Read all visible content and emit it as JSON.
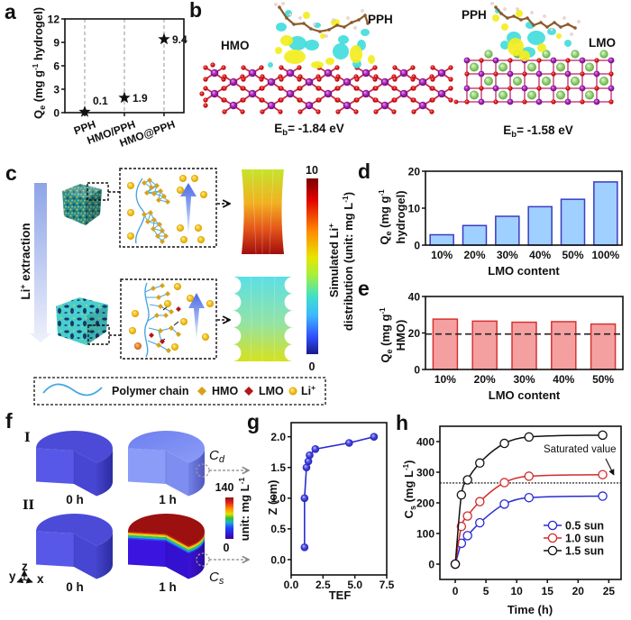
{
  "figure": {
    "panel_labels": {
      "a": "a",
      "b": "b",
      "c": "c",
      "d": "d",
      "e": "e",
      "f": "f",
      "g": "g",
      "h": "h"
    }
  },
  "panel_b": {
    "left": {
      "surface_label": "HMO",
      "molecule_label": "PPH",
      "binding_energy": {
        "symbol": "E",
        "sub": "b",
        "value": "= -1.84 eV"
      }
    },
    "right": {
      "surface_label": "LMO",
      "molecule_label": "PPH",
      "binding_energy": {
        "symbol": "E",
        "sub": "b",
        "value": "= -1.58 eV"
      }
    },
    "atom_colors": {
      "Mn": "#9a1fa8",
      "O": "#e01414",
      "Li": "#8fd070",
      "C": "#8b5a2b",
      "H": "#f2d6d6",
      "charge_accumulation": "#f2ee1e",
      "charge_depletion": "#3fdcdc"
    }
  },
  "panel_c": {
    "process_label": {
      "main": "Li",
      "sup": "+",
      "rest": " extraction"
    },
    "colorbar": {
      "max": "10",
      "min": "0",
      "title_line1": {
        "main": "Simulated Li",
        "sup": "+"
      },
      "title_line2": {
        "pre": "distribution (unit: mg L",
        "sup": "-1",
        "post": ")"
      }
    },
    "legend": [
      {
        "label": "Polymer chain",
        "symbol": "wave",
        "color": "#4aa8e2"
      },
      {
        "label": "HMO",
        "symbol": "diamond",
        "color": "#d6a21a"
      },
      {
        "label": "LMO",
        "symbol": "diamond",
        "color": "#b01818"
      },
      {
        "label": "Li",
        "sup": "+",
        "symbol": "circle",
        "color": "#f2c21b"
      }
    ]
  },
  "panel_f": {
    "rows": [
      {
        "label": "I",
        "times": [
          "0 h",
          "1 h"
        ]
      },
      {
        "label": "II",
        "times": [
          "0 h",
          "1 h"
        ]
      }
    ],
    "probe_labels": {
      "top": {
        "main": "C",
        "sub": "d"
      },
      "bottom": {
        "main": "C",
        "sub": "s"
      }
    },
    "colorbar": {
      "max": "140",
      "min": "0",
      "unit": {
        "pre": "unit: mg L",
        "sup": "-1"
      }
    },
    "axes_triad": {
      "x": "x",
      "y": "y",
      "z": "z"
    }
  },
  "chart_data": [
    {
      "panel": "a",
      "type": "scatter",
      "title": "",
      "categories": [
        "PPH",
        "HMO/PPH",
        "HMO@PPH"
      ],
      "values": [
        0.1,
        1.9,
        9.4
      ],
      "data_labels": [
        "0.1",
        "1.9",
        "9.4"
      ],
      "marker": "star",
      "xlabel": "",
      "ylabel": {
        "main": "Q",
        "sub": "e",
        "pre": " (mg g",
        "sup": "-1",
        "post": " hydrogel)"
      },
      "ylim": [
        0,
        12
      ],
      "yticks": [
        0,
        3,
        6,
        9,
        12
      ],
      "ytick_labels": [
        "0",
        "3",
        "6",
        "9",
        "12"
      ],
      "grid": "vertical dashed at categories",
      "colors": {
        "marker": "#111111",
        "grid": "#a8a8a8"
      }
    },
    {
      "panel": "d",
      "type": "bar",
      "title": "",
      "categories": [
        "10%",
        "20%",
        "30%",
        "40%",
        "50%",
        "100%"
      ],
      "values": [
        2.8,
        5.3,
        7.8,
        10.4,
        12.4,
        17.1
      ],
      "xlabel": "LMO content",
      "ylabel": {
        "main": "Q",
        "sub": "e",
        "pre": " (mg g",
        "sup": "-1",
        "line2": "hydrogel)"
      },
      "ylim": [
        0,
        20
      ],
      "yticks": [
        0,
        10,
        20
      ],
      "ytick_labels": [
        "0",
        "10",
        "20"
      ],
      "colors": {
        "fill": "#9fd0ff",
        "edge": "#3b3bc4"
      }
    },
    {
      "panel": "e",
      "type": "bar",
      "title": "",
      "categories": [
        "10%",
        "20%",
        "30%",
        "40%",
        "50%"
      ],
      "values": [
        27.6,
        26.5,
        25.9,
        26.2,
        24.9
      ],
      "reference_line": {
        "value": 19.4,
        "style": "dashed"
      },
      "xlabel": "LMO content",
      "ylabel": {
        "main": "Q",
        "sub": "e",
        "pre": " (mg g",
        "sup": "-1",
        "line2": "HMO)"
      },
      "ylim": [
        0,
        40
      ],
      "yticks": [
        0,
        20,
        40
      ],
      "ytick_labels": [
        "0",
        "20",
        "40"
      ],
      "colors": {
        "fill": "#f4a0a0",
        "edge": "#d83232",
        "reference": "#222222"
      }
    },
    {
      "panel": "g",
      "type": "line",
      "title": "",
      "x": [
        1.05,
        1.05,
        1.2,
        1.35,
        1.45,
        1.9,
        4.55,
        6.5
      ],
      "y": [
        0.2,
        1.0,
        1.5,
        1.6,
        1.7,
        1.8,
        1.9,
        2.0
      ],
      "xlabel": "TEF",
      "ylabel": "Z (cm)",
      "xlim": [
        0,
        7.5
      ],
      "ylim": [
        -0.25,
        2.23
      ],
      "xticks": [
        0,
        2.5,
        5,
        7.5
      ],
      "xtick_labels": [
        "0.0",
        "2.5",
        "5.0",
        "7.5"
      ],
      "yticks": [
        0,
        0.5,
        1,
        1.5,
        2
      ],
      "ytick_labels": [
        "0.0",
        "0.5",
        "1.0",
        "1.5",
        "2.0"
      ],
      "marker": "filled-sphere",
      "colors": {
        "line": "#2b2bd0"
      }
    },
    {
      "panel": "h",
      "type": "line",
      "title": "",
      "x": [
        0,
        1,
        2,
        4,
        8,
        12,
        24
      ],
      "series": [
        {
          "name": "0.5 sun",
          "values": [
            0,
            68,
            93,
            135,
            196,
            217,
            222
          ],
          "color": "#2a2ad4"
        },
        {
          "name": "1.0 sun",
          "values": [
            0,
            123,
            157,
            204,
            266,
            287,
            292
          ],
          "color": "#d42a2a"
        },
        {
          "name": "1.5 sun",
          "values": [
            0,
            226,
            275,
            330,
            394,
            415,
            421
          ],
          "color": "#111111"
        }
      ],
      "reference_line": {
        "value": 265,
        "style": "dotted",
        "annotation": "Saturated value"
      },
      "xlabel": "Time (h)",
      "ylabel": {
        "main": "C",
        "sub": "s",
        "pre": " (mg L",
        "sup": "-1",
        "post": ")"
      },
      "xlim": [
        -2.5,
        27
      ],
      "ylim": [
        -50,
        450
      ],
      "xticks": [
        0,
        5,
        10,
        15,
        20,
        25
      ],
      "xtick_labels": [
        "0",
        "5",
        "10",
        "15",
        "20",
        "25"
      ],
      "yticks": [
        0,
        100,
        200,
        300,
        400
      ],
      "ytick_labels": [
        "0",
        "100",
        "200",
        "300",
        "400"
      ],
      "legend": "center-right",
      "marker": "open-circle"
    }
  ]
}
